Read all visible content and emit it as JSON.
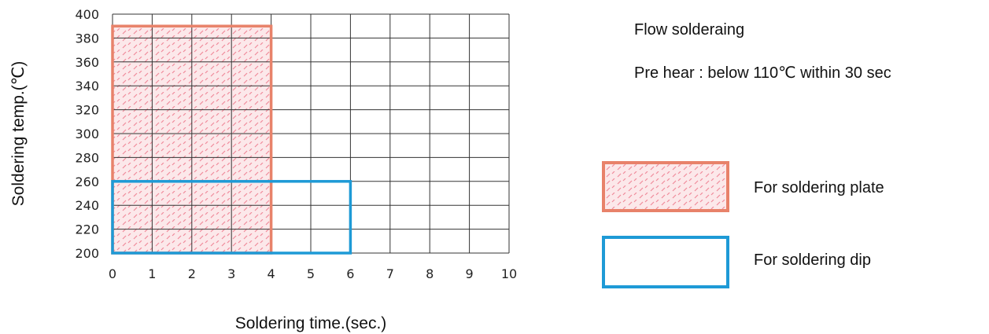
{
  "chart_data": {
    "type": "area",
    "xlabel": "Soldering time.(sec.)",
    "ylabel": "Soldering temp.(℃)",
    "xlim": [
      0,
      10
    ],
    "ylim": [
      200,
      400
    ],
    "x_ticks": [
      0,
      1,
      2,
      3,
      4,
      5,
      6,
      7,
      8,
      9,
      10
    ],
    "y_ticks": [
      200,
      220,
      240,
      260,
      280,
      300,
      320,
      340,
      360,
      380,
      400
    ],
    "grid": true,
    "regions": [
      {
        "name": "For soldering plate",
        "x": [
          0,
          4
        ],
        "y": [
          200,
          390
        ],
        "color": "#e8826a",
        "fill": "hatched-pink"
      },
      {
        "name": "For soldering dip",
        "x": [
          0,
          6
        ],
        "y": [
          200,
          260
        ],
        "color": "#1e9ad6",
        "fill": "none"
      }
    ]
  },
  "notes": {
    "title": "Flow solderaing",
    "preheat": "Pre hear : below 110℃ within 30 sec"
  },
  "legend": {
    "plate_label": "For soldering plate",
    "dip_label": "For soldering dip"
  },
  "colors": {
    "grid": "#333333",
    "hatch_bg": "#fce8ea",
    "hatch_stroke": "#f08a9a"
  }
}
